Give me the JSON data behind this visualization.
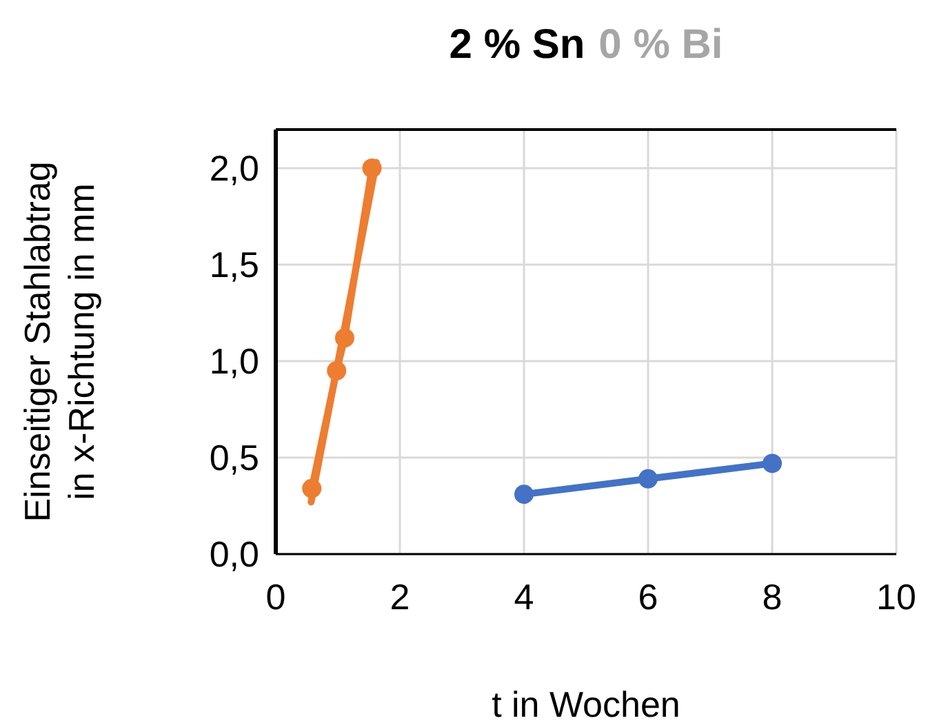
{
  "chart_data": {
    "type": "line",
    "title": "2 % Sn",
    "subtitle": "0 % Bi",
    "xlabel": "t in Wochen",
    "ylabel": "Einseitiger Stahlabtrag\nin x-Richtung in mm",
    "series": [
      {
        "color": "#ed7d31",
        "x": [
          0.58,
          0.98,
          1.11,
          1.55
        ],
        "values": [
          0.34,
          0.95,
          1.12,
          2.0
        ],
        "marker": "circle"
      },
      {
        "color": "#ed7d31",
        "x": [
          0.57,
          1.62
        ],
        "values": [
          0.27,
          2.03
        ],
        "marker": "none"
      },
      {
        "color": "#4472c4",
        "x": [
          4,
          6,
          8
        ],
        "values": [
          0.31,
          0.39,
          0.47
        ],
        "marker": "circle"
      }
    ],
    "xlim": [
      0,
      10
    ],
    "xticks": [
      0,
      2,
      4,
      6,
      8,
      10
    ],
    "ylim": [
      0,
      2.2
    ],
    "yticks": [
      {
        "value": 0,
        "label": "0,0"
      },
      {
        "value": 0.5,
        "label": "0,5"
      },
      {
        "value": 1,
        "label": "1,0"
      },
      {
        "value": 1.5,
        "label": "1,5"
      },
      {
        "value": 2,
        "label": "2,0"
      }
    ],
    "grid": true
  }
}
